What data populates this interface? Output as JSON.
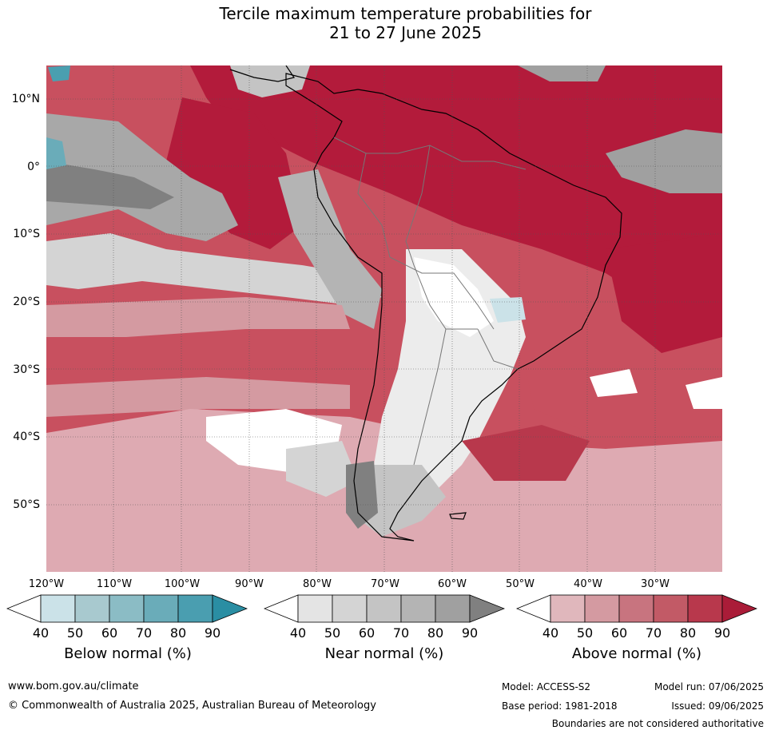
{
  "title": {
    "line1": "Tercile maximum temperature probabilities for",
    "line2": "21 to 27 June 2025"
  },
  "map": {
    "lat_labels": [
      "10°N",
      "0°",
      "10°S",
      "20°S",
      "30°S",
      "40°S",
      "50°S"
    ],
    "lon_labels": [
      "120°W",
      "110°W",
      "100°W",
      "90°W",
      "80°W",
      "70°W",
      "60°W",
      "50°W",
      "40°W",
      "30°W"
    ],
    "colors": {
      "ocean_above_high": "#b31b3b",
      "above_mid": "#c8505f",
      "above_low": "#deaab2",
      "near": "#c4c4c4",
      "near_dark": "#808080",
      "below": "#4a9fb0",
      "white": "#ffffff",
      "coast": "#000000",
      "borders": "#777777"
    }
  },
  "colorbars": [
    {
      "name": "Below normal (%)",
      "ticks": [
        "40",
        "50",
        "60",
        "70",
        "80",
        "90"
      ],
      "colors": [
        "#ffffff",
        "#cbe2e8",
        "#a8c9cf",
        "#8bbcc5",
        "#6aacb9",
        "#4a9eb0",
        "#2a8ea3"
      ]
    },
    {
      "name": "Near normal (%)",
      "ticks": [
        "40",
        "50",
        "60",
        "70",
        "80",
        "90"
      ],
      "colors": [
        "#ffffff",
        "#e4e4e4",
        "#d4d4d4",
        "#c4c4c4",
        "#b4b4b4",
        "#a0a0a0",
        "#808080"
      ]
    },
    {
      "name": "Above normal (%)",
      "ticks": [
        "40",
        "50",
        "60",
        "70",
        "80",
        "90"
      ],
      "colors": [
        "#ffffff",
        "#e0b7bc",
        "#d49aa1",
        "#c8747f",
        "#c25a66",
        "#b8384c",
        "#aa1c38"
      ]
    }
  ],
  "footer": {
    "url": "www.bom.gov.au/climate",
    "copyright": "© Commonwealth of Australia 2025, Australian Bureau of Meteorology",
    "model": "Model: ACCESS-S2",
    "model_run": "Model run: 07/06/2025",
    "base_period": "Base period: 1981-2018",
    "issued": "Issued: 09/06/2025",
    "disclaimer": "Boundaries are not considered authoritative"
  }
}
